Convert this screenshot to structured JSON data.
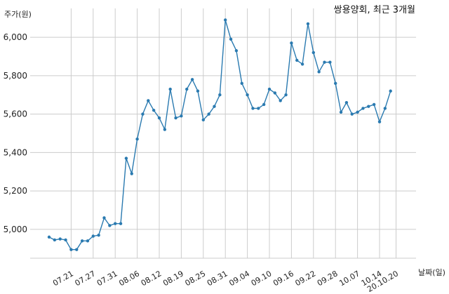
{
  "chart_data": {
    "type": "line",
    "title": "쌍용양회, 최근 3개월",
    "ylabel": "주가(원)",
    "xlabel": "날짜(일)",
    "ylim": [
      4850,
      6150
    ],
    "yticks": [
      5000,
      5200,
      5400,
      5600,
      5800,
      6000
    ],
    "ytick_labels": [
      "5,000",
      "5,200",
      "5,400",
      "5,600",
      "5,800",
      "6,000"
    ],
    "xtick_labels": [
      "07.21",
      "07.27",
      "07.31",
      "08.06",
      "08.12",
      "08.19",
      "08.25",
      "08.31",
      "09.04",
      "09.10",
      "09.16",
      "09.22",
      "09.28",
      "10.07",
      "10.14",
      "20.10.20"
    ],
    "xtick_index": [
      4,
      8,
      12,
      16,
      20,
      24,
      28,
      32,
      36,
      40,
      44,
      48,
      52,
      56,
      60,
      63
    ],
    "grid": true,
    "line_color": "#2a7ab0",
    "series": [
      {
        "values": [
          4960,
          4945,
          4950,
          4945,
          4895,
          4895,
          4940,
          4940,
          4965,
          4970,
          5060,
          5020,
          5030,
          5030,
          5370,
          5290,
          5470,
          5600,
          5670,
          5620,
          5580,
          5520,
          5730,
          5580,
          5590,
          5730,
          5780,
          5720,
          5570,
          5600,
          5640,
          5700,
          6090,
          5990,
          5930,
          5760,
          5700,
          5630,
          5630,
          5650,
          5730,
          5710,
          5670,
          5700,
          5970,
          5880,
          5860,
          6070,
          5920,
          5820,
          5870,
          5870,
          5760,
          5610,
          5660,
          5600,
          5610,
          5630,
          5640,
          5650,
          5560,
          5630,
          5720
        ]
      }
    ]
  }
}
